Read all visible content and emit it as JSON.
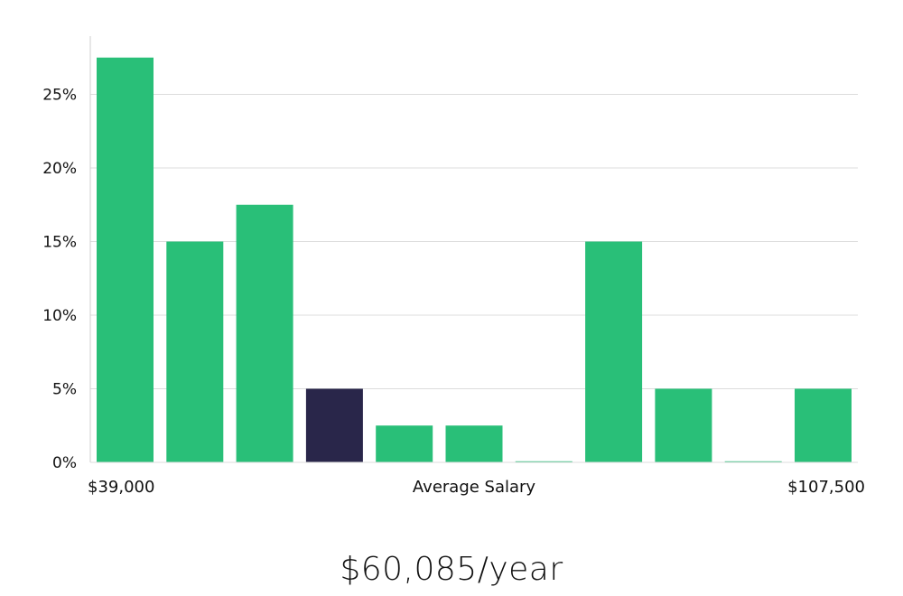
{
  "chart_data": {
    "type": "bar",
    "title": "",
    "xlabel": "Average Salary",
    "ylabel": "",
    "x_min_label": "$39,000",
    "x_max_label": "$107,500",
    "ylim": [
      0,
      29
    ],
    "y_ticks": [
      0,
      5,
      10,
      15,
      20,
      25
    ],
    "y_tick_labels": [
      "0%",
      "5%",
      "10%",
      "15%",
      "20%",
      "25%"
    ],
    "values": [
      27.5,
      15,
      17.5,
      5,
      2.5,
      2.5,
      0,
      15,
      5,
      0,
      5
    ],
    "highlight_index": 3,
    "grid": true,
    "colors": {
      "bar": "#29bf78",
      "highlight": "#29264a",
      "grid": "#dcdcdc",
      "axis": "#cfcfcf"
    }
  },
  "summary": {
    "salary_text": "$60,085/year"
  }
}
